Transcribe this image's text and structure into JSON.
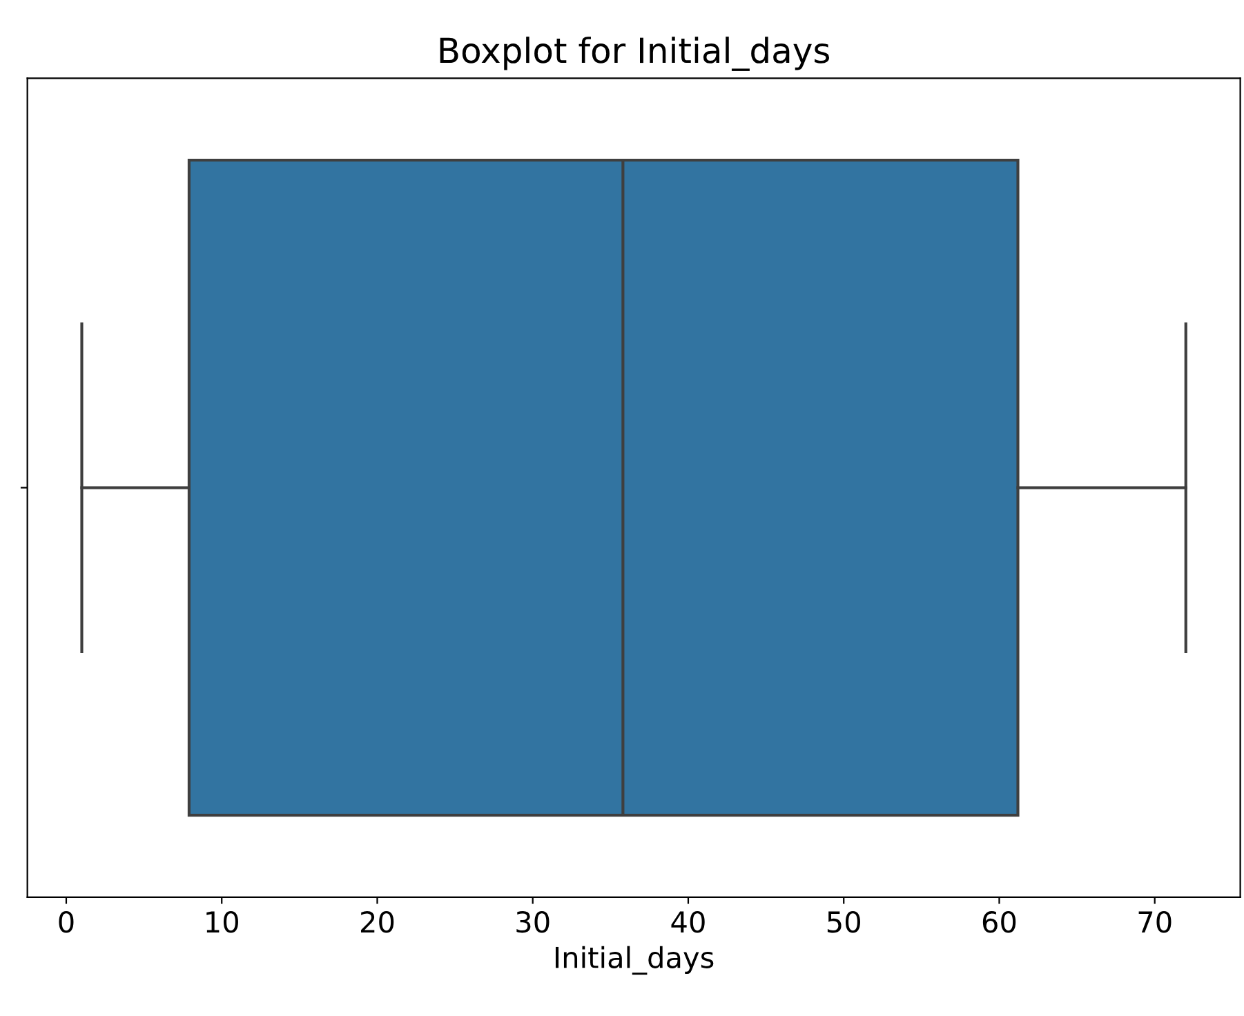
{
  "chart_data": {
    "type": "box",
    "title": "Boxplot for Initial_days",
    "xlabel": "Initial_days",
    "orientation": "horizontal",
    "categories": [
      null
    ],
    "series": [
      {
        "color": "#3274a1",
        "boxes": [
          {
            "low": 1,
            "q1": 7.9,
            "median": 35.8,
            "q3": 61.2,
            "high": 72
          }
        ]
      }
    ],
    "xlim": [
      -2.5,
      75.5
    ],
    "xticks": [
      0,
      10,
      20,
      30,
      40,
      50,
      60,
      70
    ],
    "grid": false
  }
}
